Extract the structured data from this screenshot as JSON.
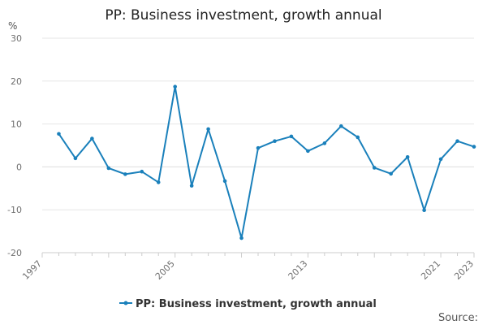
{
  "chart_data": {
    "type": "line",
    "title": "PP: Business investment, growth annual",
    "ylabel": "%",
    "xlabel": "",
    "ylim": [
      -20,
      30
    ],
    "yticks": [
      -20,
      -10,
      0,
      10,
      20,
      30
    ],
    "xlim": [
      1997,
      2023
    ],
    "xtick_labels": [
      1997,
      2005,
      2013,
      2021,
      2023
    ],
    "x": [
      1998,
      1999,
      2000,
      2001,
      2002,
      2003,
      2004,
      2005,
      2006,
      2007,
      2008,
      2009,
      2010,
      2011,
      2012,
      2013,
      2014,
      2015,
      2016,
      2017,
      2018,
      2019,
      2020,
      2021,
      2022,
      2023
    ],
    "series": [
      {
        "name": "PP: Business investment, growth annual",
        "color": "#1a80bb",
        "values": [
          7.7,
          2.0,
          6.6,
          -0.3,
          -1.7,
          -1.1,
          -3.6,
          18.7,
          -4.4,
          8.8,
          -3.3,
          -16.6,
          4.4,
          6.0,
          7.1,
          3.7,
          5.5,
          9.5,
          6.9,
          -0.2,
          -1.6,
          2.3,
          -10.1,
          1.8,
          6.0,
          4.7
        ]
      }
    ],
    "grid": true,
    "legend": "bottom-center"
  },
  "source_label": "Source:"
}
